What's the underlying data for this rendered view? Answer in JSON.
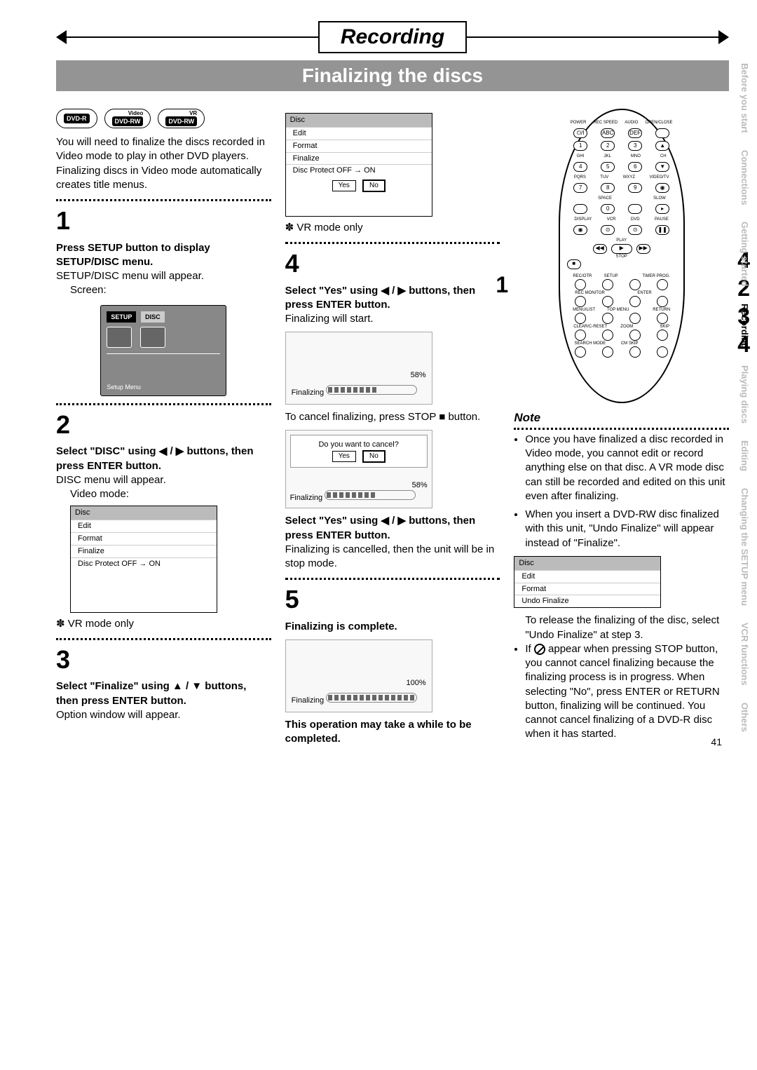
{
  "header": {
    "title": "Recording",
    "subtitle": "Finalizing the discs"
  },
  "disc_badges": [
    {
      "top": "",
      "main": "DVD-R"
    },
    {
      "top": "Video",
      "main": "DVD-RW"
    },
    {
      "top": "VR",
      "main": "DVD-RW"
    }
  ],
  "intro": {
    "p1": "You will need to finalize the discs recorded in Video mode to play in other DVD players.",
    "p2": "Finalizing discs in Video mode automatically creates title menus."
  },
  "steps": {
    "s1": {
      "num": "1",
      "heading": "Press SETUP button to display SETUP/DISC menu.",
      "line1": "SETUP/DISC menu will appear.",
      "line2": "Screen:",
      "setup_tab1": "SETUP",
      "setup_tab2": "DISC",
      "setup_footer": "Setup Menu"
    },
    "s2": {
      "num": "2",
      "heading": "Select \"DISC\" using ◀ / ▶ buttons, then press ENTER button.",
      "line1": "DISC menu will appear.",
      "line2": "Video mode:",
      "menu_title": "Disc",
      "menu_items": [
        "Edit",
        "Format",
        "Finalize",
        "Disc Protect OFF → ON"
      ],
      "vr_note": "✽ VR mode only"
    },
    "s3": {
      "num": "3",
      "heading": "Select \"Finalize\" using ▲ / ▼ buttons, then press ENTER button.",
      "line1": "Option window will appear."
    },
    "col2_menu": {
      "title": "Disc",
      "items": [
        "Edit",
        "Format",
        "Finalize",
        "Disc Protect OFF → ON"
      ],
      "yes": "Yes",
      "no": "No",
      "vr_note": "✽ VR mode only"
    },
    "s4": {
      "num": "4",
      "heading": "Select \"Yes\" using ◀ / ▶ buttons, then press ENTER button.",
      "line1": "Finalizing will start.",
      "progress_pct": "58%",
      "progress_label": "Finalizing",
      "progress_fill": "58%",
      "cancel_text": "To cancel finalizing, press STOP ■ button.",
      "cancel_prompt": "Do you want to cancel?",
      "yes": "Yes",
      "no": "No",
      "heading2": "Select \"Yes\" using ◀ / ▶ buttons, then press ENTER button.",
      "line2": "Finalizing is cancelled, then the unit will be in stop mode."
    },
    "s5": {
      "num": "5",
      "heading": "Finalizing is complete.",
      "progress_pct": "100%",
      "progress_label": "Finalizing",
      "progress_fill": "100%",
      "footer": "This operation may take a while to be completed."
    }
  },
  "remote": {
    "side_left": "1",
    "side_right": [
      "4",
      "2",
      "3",
      "4"
    ],
    "row_labels": [
      [
        "POWER",
        "REC SPEED",
        "AUDIO",
        "OPEN/CLOSE"
      ],
      [
        "⏻/I",
        "ABC",
        "DEF",
        ""
      ],
      [
        "1",
        "2",
        "3",
        "▲"
      ],
      [
        "GHI",
        "JKL",
        "MNO",
        "CH"
      ],
      [
        "4",
        "5",
        "6",
        "▼"
      ],
      [
        "PQRS",
        "TUV",
        "WXYZ",
        "VIDEO/TV"
      ],
      [
        "7",
        "8",
        "9",
        "◉"
      ],
      [
        "",
        "SPACE",
        "",
        "SLOW"
      ],
      [
        "",
        "0",
        "",
        "▸"
      ],
      [
        "DISPLAY",
        "VCR",
        "DVD",
        "PAUSE"
      ],
      [
        "◉",
        "⊙",
        "⊙",
        "❚❚"
      ]
    ],
    "play_label": "PLAY",
    "play": "▶",
    "rew": "◀◀",
    "ff": "▶▶",
    "stop_label": "STOP",
    "stop": "■",
    "group1_labels": [
      "REC/OTR",
      "SETUP",
      "",
      "TIMER PROG."
    ],
    "group2_labels": [
      "REC MONITOR",
      "",
      "ENTER",
      ""
    ],
    "group3_labels": [
      "MENU/LIST",
      "TOP MENU",
      "",
      "RETURN"
    ],
    "group4_labels": [
      "CLEAR/C-RESET",
      "ZOOM",
      "",
      "SKIP"
    ],
    "group5_labels": [
      "SEARCH MODE",
      "CM SKIP",
      "",
      ""
    ]
  },
  "note": {
    "title": "Note",
    "items": [
      "Once you have finalized a disc recorded in Video mode, you cannot edit or record anything else on that disc. A VR mode disc can still be recorded and edited on this unit even after finalizing.",
      "When you insert a DVD-RW disc finalized with this unit, \"Undo Finalize\" will appear instead of \"Finalize\"."
    ],
    "menu_title": "Disc",
    "menu_items": [
      "Edit",
      "Format",
      "Undo Finalize"
    ],
    "release_text": "To release the finalizing of the disc, select \"Undo Finalize\" at step 3.",
    "if_bullet": "If ⦰ appear when pressing STOP button, you cannot cancel finalizing because the finalizing process is in progress. When selecting \"No\", press ENTER or RETURN button, finalizing will be continued. You cannot cancel finalizing of a DVD-R disc when it has started."
  },
  "tabs": [
    "Before you start",
    "Connections",
    "Getting started",
    "Recording",
    "Playing discs",
    "Editing",
    "Changing the SETUP menu",
    "VCR functions",
    "Others"
  ],
  "active_tab_index": 3,
  "page_number": "41"
}
